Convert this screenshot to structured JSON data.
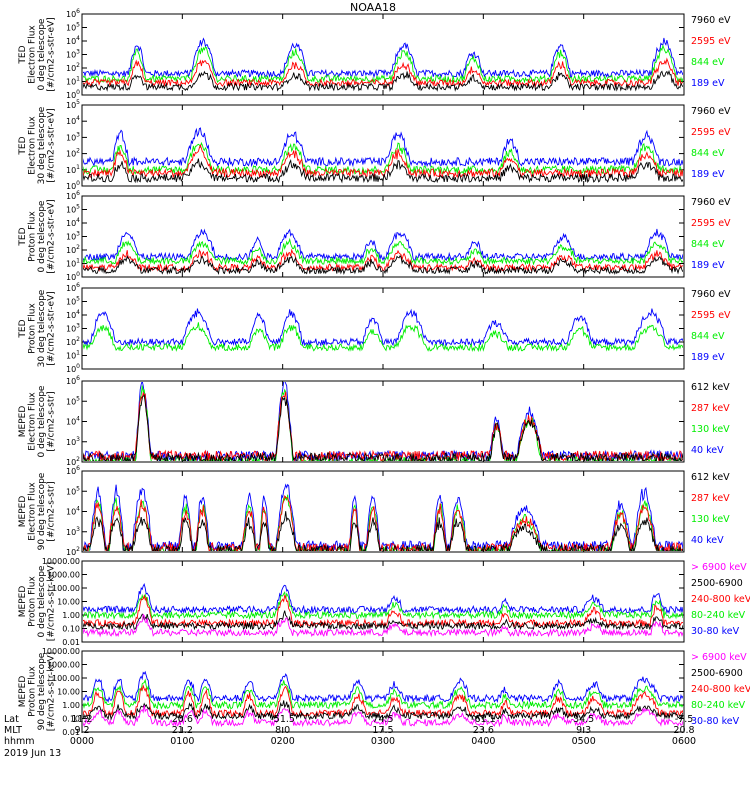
{
  "chart_data": {
    "type": "line",
    "title": "NOAA18",
    "date": "2019 Jun 13",
    "footer": {
      "row_labels": [
        "Lat",
        "MLT",
        "hhmm"
      ],
      "columns": [
        {
          "lat": "11.2",
          "mlt": "9.2",
          "hhmm": "0000"
        },
        {
          "lat": "20.6",
          "mlt": "21.2",
          "hhmm": "0100"
        },
        {
          "lat": "-51.5",
          "mlt": "8.0",
          "hhmm": "0200"
        },
        {
          "lat": "74.5",
          "mlt": "17.5",
          "hhmm": "0300"
        },
        {
          "lat": "-61.1",
          "mlt": "23.6",
          "hhmm": "0400"
        },
        {
          "lat": "34.5",
          "mlt": "9.3",
          "hhmm": "0500"
        },
        {
          "lat": "-7.5",
          "mlt": "20.8",
          "hhmm": "0600"
        }
      ]
    },
    "x": {
      "unit": "hhmm",
      "range_minutes": [
        0,
        360
      ],
      "ticks_minutes": [
        0,
        60,
        120,
        180,
        240,
        300,
        360
      ]
    },
    "panels": [
      {
        "ylabel": [
          "TED",
          "Electron Flux",
          "0 deg telescope",
          "[#/cm2-s-str-eV]"
        ],
        "yscale": "log",
        "ylim": [
          1,
          1000000
        ],
        "ytick_labels": [
          "10^0",
          "10^1",
          "10^2",
          "10^3",
          "10^4",
          "10^5",
          "10^6"
        ],
        "series": [
          {
            "name": "7960 eV",
            "color": "#000000",
            "base": 0.6,
            "peak": 1.7
          },
          {
            "name": "2595 eV",
            "color": "#ff0000",
            "base": 0.9,
            "peak": 2.6
          },
          {
            "name": "844 eV",
            "color": "#00ee00",
            "base": 1.2,
            "peak": 3.6
          },
          {
            "name": "189 eV",
            "color": "#0000ff",
            "base": 1.6,
            "peak": 4.2
          }
        ],
        "events": [
          [
            28,
            38,
            0.8
          ],
          [
            65,
            80,
            0.9
          ],
          [
            120,
            135,
            0.8
          ],
          [
            185,
            200,
            0.8
          ],
          [
            228,
            240,
            0.6
          ],
          [
            280,
            292,
            0.8
          ],
          [
            340,
            356,
            0.9
          ]
        ]
      },
      {
        "ylabel": [
          "TED",
          "Electron Flux",
          "30 deg telescope",
          "[#/cm2-s-str-eV]"
        ],
        "yscale": "log",
        "ylim": [
          1,
          100000
        ],
        "ytick_labels": [
          "10^0",
          "10^1",
          "10^2",
          "10^3",
          "10^4",
          "10^5"
        ],
        "series": [
          {
            "name": "7960 eV",
            "color": "#000000",
            "base": 0.5,
            "peak": 1.5
          },
          {
            "name": "2595 eV",
            "color": "#ff0000",
            "base": 0.8,
            "peak": 2.3
          },
          {
            "name": "844 eV",
            "color": "#00ee00",
            "base": 1.0,
            "peak": 2.8
          },
          {
            "name": "189 eV",
            "color": "#0000ff",
            "base": 1.5,
            "peak": 3.6
          }
        ],
        "events": [
          [
            18,
            28,
            0.8
          ],
          [
            62,
            78,
            0.9
          ],
          [
            118,
            134,
            0.8
          ],
          [
            182,
            196,
            0.8
          ],
          [
            250,
            262,
            0.6
          ],
          [
            330,
            345,
            0.8
          ]
        ]
      },
      {
        "ylabel": [
          "TED",
          "Proton Flux",
          "0 deg telescope",
          "[#/cm2-s-str-eV]"
        ],
        "yscale": "log",
        "ylim": [
          1,
          1000000
        ],
        "ytick_labels": [
          "10^0",
          "10^1",
          "10^2",
          "10^3",
          "10^4",
          "10^5",
          "10^6"
        ],
        "series": [
          {
            "name": "7960 eV",
            "color": "#000000",
            "base": 0.5,
            "peak": 1.4
          },
          {
            "name": "2595 eV",
            "color": "#ff0000",
            "base": 0.7,
            "peak": 1.8
          },
          {
            "name": "844 eV",
            "color": "#00ee00",
            "base": 1.2,
            "peak": 2.6
          },
          {
            "name": "189 eV",
            "color": "#0000ff",
            "base": 1.5,
            "peak": 3.5
          }
        ],
        "events": [
          [
            20,
            34,
            0.9
          ],
          [
            64,
            80,
            0.9
          ],
          [
            100,
            110,
            0.6
          ],
          [
            116,
            132,
            0.9
          ],
          [
            168,
            178,
            0.6
          ],
          [
            182,
            198,
            0.9
          ],
          [
            230,
            240,
            0.5
          ],
          [
            280,
            296,
            0.7
          ],
          [
            336,
            352,
            0.9
          ]
        ]
      },
      {
        "ylabel": [
          "TED",
          "Proton Flux",
          "30 deg telescope",
          "[#/cm2-s-str-eV]"
        ],
        "yscale": "log",
        "ylim": [
          1,
          1000000
        ],
        "ytick_labels": [
          "10^0",
          "10^1",
          "10^2",
          "10^3",
          "10^4",
          "10^5",
          "10^6"
        ],
        "series": [
          {
            "name": "7960 eV",
            "color": "#000000",
            "base": 0.0,
            "peak": 0.0
          },
          {
            "name": "2595 eV",
            "color": "#ff0000",
            "base": 0.0,
            "peak": 0.0
          },
          {
            "name": "844 eV",
            "color": "#00ee00",
            "base": 1.6,
            "peak": 3.3
          },
          {
            "name": "189 eV",
            "color": "#0000ff",
            "base": 2.0,
            "peak": 4.4
          }
        ],
        "events": [
          [
            5,
            20,
            0.9
          ],
          [
            60,
            78,
            0.9
          ],
          [
            100,
            112,
            0.8
          ],
          [
            118,
            132,
            0.9
          ],
          [
            168,
            180,
            0.7
          ],
          [
            188,
            206,
            0.9
          ],
          [
            240,
            255,
            0.6
          ],
          [
            290,
            305,
            0.8
          ],
          [
            330,
            350,
            0.9
          ]
        ]
      },
      {
        "ylabel": [
          "MEPED",
          "Electron Flux",
          "0 deg telescope",
          "[#/cm2-s-str]"
        ],
        "yscale": "log",
        "ylim": [
          100,
          1000000
        ],
        "ytick_labels": [
          "10^2",
          "10^3",
          "10^4",
          "10^5",
          "10^6"
        ],
        "series": [
          {
            "name": "612 keV",
            "color": "#000000",
            "base": 2.2,
            "peak": 5.2
          },
          {
            "name": "287 keV",
            "color": "#ff0000",
            "base": 2.3,
            "peak": 5.4
          },
          {
            "name": "130 keV",
            "color": "#00ee00",
            "base": 2.0,
            "peak": 5.5
          },
          {
            "name": "40 keV",
            "color": "#0000ff",
            "base": 2.3,
            "peak": 5.9
          }
        ],
        "events": [
          [
            32,
            41,
            1.0
          ],
          [
            116,
            126,
            1.0
          ],
          [
            244,
            252,
            0.5
          ],
          [
            260,
            275,
            0.6
          ]
        ]
      },
      {
        "ylabel": [
          "MEPED",
          "Electron Flux",
          "90 deg telescope",
          "[#/cm2-s-str]"
        ],
        "yscale": "log",
        "ylim": [
          100,
          1000000
        ],
        "ytick_labels": [
          "10^2",
          "10^3",
          "10^4",
          "10^5",
          "10^6"
        ],
        "series": [
          {
            "name": "612 keV",
            "color": "#000000",
            "base": 2.1,
            "peak": 3.8
          },
          {
            "name": "287 keV",
            "color": "#ff0000",
            "base": 2.2,
            "peak": 4.5
          },
          {
            "name": "130 keV",
            "color": "#00ee00",
            "base": 2.0,
            "peak": 4.7
          },
          {
            "name": "40 keV",
            "color": "#0000ff",
            "base": 2.3,
            "peak": 5.3
          }
        ],
        "events": [
          [
            5,
            14,
            0.9
          ],
          [
            16,
            25,
            0.9
          ],
          [
            30,
            42,
            0.9
          ],
          [
            58,
            66,
            0.8
          ],
          [
            68,
            76,
            0.8
          ],
          [
            96,
            104,
            0.8
          ],
          [
            106,
            112,
            0.8
          ],
          [
            116,
            128,
            1.0
          ],
          [
            160,
            166,
            0.8
          ],
          [
            170,
            178,
            0.8
          ],
          [
            210,
            218,
            0.8
          ],
          [
            220,
            230,
            0.8
          ],
          [
            255,
            275,
            0.6
          ],
          [
            316,
            328,
            0.7
          ],
          [
            330,
            343,
            0.9
          ]
        ]
      },
      {
        "ylabel": [
          "MEPED",
          "Proton Flux",
          "0 deg telescope",
          "[#/cm2-s-str-keV]"
        ],
        "yscale": "log",
        "ylim": [
          0.01,
          10000
        ],
        "ytick_labels": [
          "0.01",
          "0.10",
          "1.00",
          "10.00",
          "100.00",
          "1000.00",
          "10000.00"
        ],
        "series": [
          {
            "name": "> 6900 keV",
            "color": "#ff00ff",
            "base": -1.3,
            "peak": -0.3
          },
          {
            "name": "2500-6900",
            "color": "#000000",
            "base": -0.8,
            "peak": 0.0
          },
          {
            "name": "240-800 keV",
            "color": "#ff0000",
            "base": -0.6,
            "peak": 1.2
          },
          {
            "name": "80-240 keV",
            "color": "#00ee00",
            "base": 0.0,
            "peak": 1.5
          },
          {
            "name": "30-80 keV",
            "color": "#0000ff",
            "base": 0.4,
            "peak": 2.1
          }
        ],
        "events": [
          [
            32,
            42,
            1.0
          ],
          [
            116,
            126,
            1.0
          ],
          [
            182,
            192,
            0.5
          ],
          [
            250,
            256,
            0.4
          ],
          [
            300,
            312,
            0.5
          ],
          [
            340,
            348,
            0.7
          ]
        ]
      },
      {
        "ylabel": [
          "MEPED",
          "Proton Flux",
          "90 deg telescope",
          "[#/cm2-s-str-keV]"
        ],
        "yscale": "log",
        "ylim": [
          0.01,
          10000
        ],
        "ytick_labels": [
          "0.01",
          "0.10",
          "1.00",
          "10.00",
          "100.00",
          "1000.00",
          "10000.00"
        ],
        "series": [
          {
            "name": "> 6900 keV",
            "color": "#ff00ff",
            "base": -1.3,
            "peak": -0.3
          },
          {
            "name": "2500-6900",
            "color": "#000000",
            "base": -0.8,
            "peak": 0.0
          },
          {
            "name": "240-800 keV",
            "color": "#ff0000",
            "base": -0.6,
            "peak": 1.2
          },
          {
            "name": "80-240 keV",
            "color": "#00ee00",
            "base": 0.0,
            "peak": 1.6
          },
          {
            "name": "30-80 keV",
            "color": "#0000ff",
            "base": 0.5,
            "peak": 2.2
          }
        ],
        "events": [
          [
            5,
            14,
            0.8
          ],
          [
            18,
            26,
            0.8
          ],
          [
            32,
            42,
            1.0
          ],
          [
            60,
            68,
            0.8
          ],
          [
            70,
            78,
            0.8
          ],
          [
            96,
            104,
            0.7
          ],
          [
            116,
            126,
            1.0
          ],
          [
            160,
            170,
            0.7
          ],
          [
            182,
            192,
            0.6
          ],
          [
            220,
            232,
            0.7
          ],
          [
            250,
            256,
            0.4
          ],
          [
            280,
            290,
            0.6
          ],
          [
            300,
            312,
            0.6
          ],
          [
            328,
            345,
            0.8
          ]
        ]
      }
    ]
  }
}
